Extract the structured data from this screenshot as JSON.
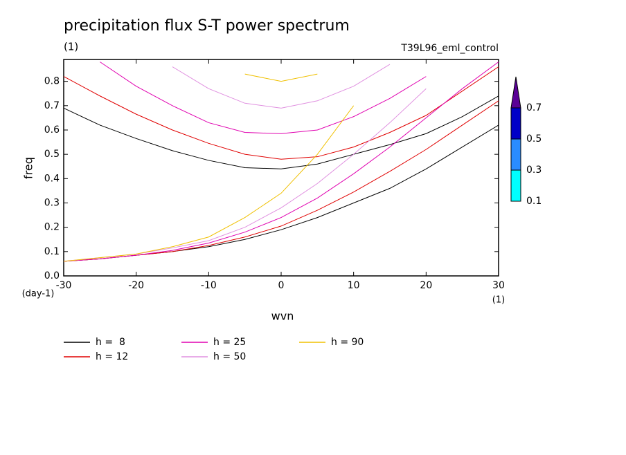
{
  "chart_data": {
    "type": "line",
    "title": "precipitation flux S-T power spectrum",
    "subtitle": "(1)",
    "right_label": "T39L96_eml_control",
    "x_label": "wvn",
    "y_label": "freq",
    "x_unit": "(1)",
    "y_unit": "(day-1)",
    "xlim": [
      -30,
      30
    ],
    "ylim": [
      0,
      0.89
    ],
    "xticks": [
      -30,
      -20,
      -10,
      0,
      10,
      20,
      30
    ],
    "yticks": [
      {
        "value": 0,
        "label": "0.0"
      },
      {
        "value": 0.1,
        "label": "0.1"
      },
      {
        "value": 0.2,
        "label": "0.2"
      },
      {
        "value": 0.3,
        "label": "0.3"
      },
      {
        "value": 0.4,
        "label": "0.4"
      },
      {
        "value": 0.5,
        "label": "0.5"
      },
      {
        "value": 0.6,
        "label": "0.6"
      },
      {
        "value": 0.7,
        "label": "0.7"
      },
      {
        "value": 0.8,
        "label": "0.8"
      }
    ],
    "x": [
      -30,
      -25,
      -20,
      -15,
      -10,
      -5,
      0,
      5,
      10,
      15,
      20,
      25,
      30
    ],
    "series": [
      {
        "name": "h =  8",
        "color": "#000000",
        "curves": [
          [
            0.69,
            0.62,
            0.565,
            0.515,
            0.475,
            0.445,
            0.44,
            0.46,
            0.5,
            0.54,
            0.585,
            0.655,
            0.74
          ],
          [
            0.06,
            0.07,
            0.085,
            0.1,
            0.12,
            0.15,
            0.19,
            0.24,
            0.3,
            0.36,
            0.44,
            0.53,
            0.62
          ]
        ]
      },
      {
        "name": "h = 12",
        "color": "#e00000",
        "curves": [
          [
            0.82,
            0.74,
            0.665,
            0.6,
            0.545,
            0.5,
            0.48,
            0.49,
            0.53,
            0.59,
            0.66,
            0.76,
            0.86
          ],
          [
            0.06,
            0.07,
            0.085,
            0.1,
            0.125,
            0.16,
            0.205,
            0.27,
            0.345,
            0.43,
            0.52,
            0.62,
            0.72
          ]
        ]
      },
      {
        "name": "h = 25",
        "color": "#e000b0",
        "curves": [
          [
            null,
            0.88,
            0.78,
            0.7,
            0.63,
            0.59,
            0.585,
            0.6,
            0.655,
            0.73,
            0.82,
            null,
            null
          ],
          [
            0.06,
            0.07,
            0.085,
            0.105,
            0.135,
            0.18,
            0.24,
            0.32,
            0.42,
            0.53,
            0.65,
            0.77,
            0.88
          ]
        ]
      },
      {
        "name": "h = 50",
        "color": "#e090e0",
        "curves": [
          [
            null,
            null,
            null,
            0.86,
            0.77,
            0.71,
            0.69,
            0.72,
            0.78,
            0.87,
            null,
            null,
            null
          ],
          [
            0.06,
            0.075,
            0.09,
            0.115,
            0.145,
            0.2,
            0.28,
            0.38,
            0.5,
            0.63,
            0.77,
            null,
            null
          ]
        ]
      },
      {
        "name": "h = 90",
        "color": "#f0c000",
        "curves": [
          [
            null,
            null,
            null,
            null,
            null,
            0.83,
            0.8,
            0.83,
            null,
            null,
            null,
            null,
            null
          ],
          [
            0.06,
            0.075,
            0.09,
            0.12,
            0.16,
            0.24,
            0.34,
            0.5,
            0.7,
            null,
            null,
            null,
            null
          ]
        ]
      }
    ],
    "colorbar": {
      "levels": [
        0.1,
        0.3,
        0.5,
        0.7
      ],
      "colors": [
        "#00ffff",
        "#2a8cff",
        "#0000c8",
        "#5a0096"
      ]
    }
  }
}
